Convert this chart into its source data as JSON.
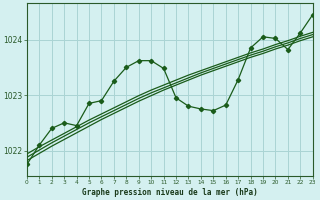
{
  "title": "Graphe pression niveau de la mer (hPa)",
  "bg_color": "#d4f0f0",
  "grid_color": "#aad4d4",
  "line_color": "#1a5c1a",
  "x_min": 0,
  "x_max": 23,
  "y_min": 1021.55,
  "y_max": 1024.65,
  "yticks": [
    1022,
    1023,
    1024
  ],
  "xticks": [
    0,
    1,
    2,
    3,
    4,
    5,
    6,
    7,
    8,
    9,
    10,
    11,
    12,
    13,
    14,
    15,
    16,
    17,
    18,
    19,
    20,
    21,
    22,
    23
  ],
  "jagged_y": [
    1021.75,
    1022.1,
    1022.4,
    1022.5,
    1022.45,
    1022.85,
    1022.9,
    1023.25,
    1023.5,
    1023.62,
    1023.62,
    1023.48,
    1022.95,
    1022.8,
    1022.75,
    1022.72,
    1022.82,
    1023.28,
    1023.85,
    1024.05,
    1024.02,
    1023.82,
    1024.12,
    1024.45
  ],
  "smooth1_y": [
    1021.82,
    1021.95,
    1022.08,
    1022.2,
    1022.32,
    1022.44,
    1022.56,
    1022.67,
    1022.78,
    1022.89,
    1022.99,
    1023.09,
    1023.18,
    1023.27,
    1023.36,
    1023.44,
    1023.52,
    1023.6,
    1023.68,
    1023.75,
    1023.83,
    1023.9,
    1023.98,
    1024.05
  ],
  "smooth2_y": [
    1021.88,
    1022.01,
    1022.14,
    1022.26,
    1022.38,
    1022.5,
    1022.61,
    1022.72,
    1022.83,
    1022.94,
    1023.04,
    1023.13,
    1023.22,
    1023.31,
    1023.4,
    1023.48,
    1023.56,
    1023.64,
    1023.72,
    1023.79,
    1023.87,
    1023.94,
    1024.02,
    1024.09
  ],
  "smooth3_y": [
    1021.94,
    1022.07,
    1022.19,
    1022.31,
    1022.43,
    1022.55,
    1022.66,
    1022.77,
    1022.88,
    1022.99,
    1023.09,
    1023.18,
    1023.27,
    1023.36,
    1023.44,
    1023.52,
    1023.6,
    1023.68,
    1023.76,
    1023.83,
    1023.91,
    1023.98,
    1024.06,
    1024.13
  ]
}
